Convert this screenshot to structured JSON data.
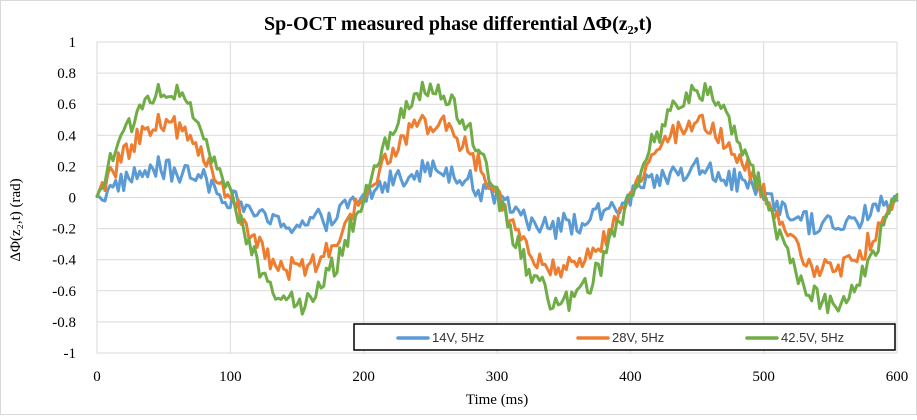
{
  "chart_data": {
    "type": "line",
    "title": "Sp-OCT measured phase differential ΔΦ(z₂,t)",
    "xlabel": "Time (ms)",
    "ylabel": "ΔΦ(z₂,t) (rad)",
    "xlim": [
      0,
      600
    ],
    "ylim": [
      -1,
      1
    ],
    "x_ticks": [
      0,
      100,
      200,
      300,
      400,
      500,
      600
    ],
    "y_ticks": [
      1,
      0.8,
      0.6,
      0.4,
      0.2,
      0,
      -0.2,
      -0.4,
      -0.6,
      -0.8,
      -1
    ],
    "x_tick_labels": [
      "0",
      "100",
      "200",
      "300",
      "400",
      "500",
      "600"
    ],
    "y_tick_labels": [
      "1",
      "0.8",
      "0.6",
      "0.4",
      "0.2",
      "0",
      "-0.2",
      "-0.4",
      "-0.6",
      "-0.8",
      "-1"
    ],
    "grid": true,
    "legend_position": "bottom-right",
    "sample_step_ms": 2,
    "series": [
      {
        "name": "14V, 5Hz",
        "color": "#5B9BD5",
        "amplitude": 0.18,
        "noise": 0.07,
        "period_ms": 200,
        "x_start": 0,
        "x_end": 600
      },
      {
        "name": "28V, 5Hz",
        "color": "#ED7D31",
        "amplitude": 0.47,
        "noise": 0.07,
        "period_ms": 200,
        "x_start": 0,
        "x_end": 600
      },
      {
        "name": "42.5V, 5Hz",
        "color": "#70AD47",
        "amplitude": 0.68,
        "noise": 0.07,
        "period_ms": 200,
        "x_start": 0,
        "x_end": 600
      }
    ]
  }
}
